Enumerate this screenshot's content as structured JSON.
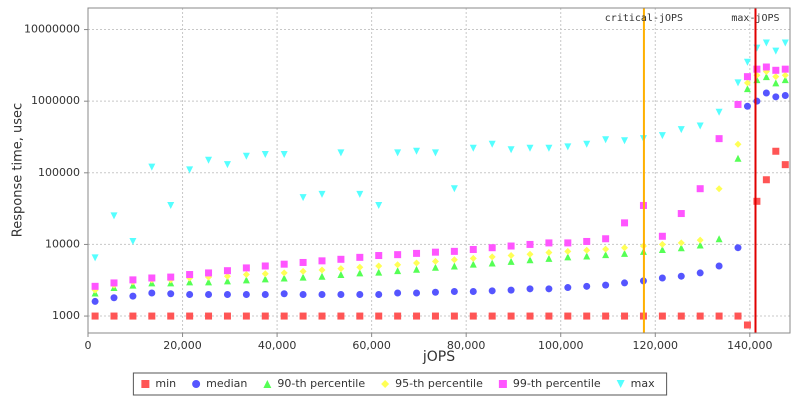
{
  "chart_data": {
    "type": "scatter",
    "x_label": "jOPS",
    "y_label": "Response time, usec",
    "log_y": true,
    "grid": true,
    "xlim": [
      0,
      148500
    ],
    "ylim": [
      580,
      20000000
    ],
    "xticks": [
      0,
      {
        "value": 20000,
        "label": "20,000"
      },
      {
        "value": 40000,
        "label": "40,000"
      },
      {
        "value": 60000,
        "label": "60,000"
      },
      {
        "value": 80000,
        "label": "80,000"
      },
      {
        "value": 100000,
        "label": "100,000"
      },
      {
        "value": 120000,
        "label": "120,000"
      },
      {
        "value": 140000,
        "label": "140,000"
      }
    ],
    "yticks": [
      1000,
      10000,
      100000,
      1000000,
      10000000
    ],
    "vlines": [
      {
        "label": "critical-jOPS",
        "x": 117600,
        "color": "#ffb000"
      },
      {
        "label": "max-jOPS",
        "x": 141200,
        "color": "#e00000"
      }
    ],
    "x": [
      1500,
      5500,
      9500,
      13500,
      17500,
      21500,
      25500,
      29500,
      33500,
      37500,
      41500,
      45500,
      49500,
      53500,
      57500,
      61500,
      65500,
      69500,
      73500,
      77500,
      81500,
      85500,
      89500,
      93500,
      97500,
      101500,
      105500,
      109500,
      113500,
      117500,
      121500,
      125500,
      129500,
      133500,
      137500,
      139500,
      141500,
      143500,
      145500,
      147500
    ],
    "series": [
      {
        "name": "min",
        "color": "#ff5555",
        "marker": "square",
        "values": [
          1000,
          1000,
          1000,
          1000,
          1000,
          1000,
          1000,
          1000,
          1000,
          1000,
          1000,
          1000,
          1000,
          1000,
          1000,
          1000,
          1000,
          1000,
          1000,
          1000,
          1000,
          1000,
          1000,
          1000,
          1000,
          1000,
          1000,
          1000,
          1000,
          1000,
          1000,
          1000,
          1000,
          1000,
          1000,
          750,
          40000,
          80000,
          200000,
          130000
        ]
      },
      {
        "name": "median",
        "color": "#5555ff",
        "marker": "circle",
        "values": [
          1600,
          1800,
          1900,
          2100,
          2050,
          2000,
          2000,
          2000,
          2000,
          2000,
          2050,
          2000,
          2000,
          2000,
          2000,
          2000,
          2100,
          2100,
          2150,
          2200,
          2200,
          2250,
          2300,
          2400,
          2400,
          2500,
          2600,
          2700,
          2900,
          3100,
          3400,
          3600,
          4000,
          5000,
          9000,
          850000,
          1000000,
          1300000,
          1150000,
          1200000
        ]
      },
      {
        "name": "90-th percentile",
        "color": "#55ff55",
        "marker": "triangle",
        "values": [
          2100,
          2500,
          2700,
          2900,
          2900,
          3000,
          3000,
          3100,
          3200,
          3300,
          3400,
          3500,
          3600,
          3800,
          4000,
          4100,
          4300,
          4500,
          4800,
          5000,
          5300,
          5500,
          5800,
          6100,
          6400,
          6700,
          6900,
          7200,
          7500,
          8000,
          8500,
          9000,
          9800,
          12000,
          160000,
          1500000,
          2000000,
          2200000,
          1800000,
          2000000
        ]
      },
      {
        "name": "95-th percentile",
        "color": "#ffff55",
        "marker": "diamond",
        "values": [
          2300,
          2700,
          3000,
          3200,
          3200,
          3400,
          3500,
          3600,
          3800,
          3900,
          4000,
          4200,
          4400,
          4600,
          4800,
          5000,
          5200,
          5500,
          5800,
          6100,
          6400,
          6700,
          7000,
          7300,
          7700,
          8000,
          8300,
          8600,
          9000,
          9500,
          10000,
          10500,
          11500,
          60000,
          250000,
          1800000,
          2300000,
          2600000,
          2200000,
          2300000
        ]
      },
      {
        "name": "99-th percentile",
        "color": "#ff55ff",
        "marker": "square",
        "values": [
          2600,
          2900,
          3200,
          3400,
          3500,
          3800,
          4000,
          4300,
          4700,
          5000,
          5300,
          5600,
          5900,
          6200,
          6600,
          7000,
          7200,
          7500,
          7800,
          8000,
          8500,
          9000,
          9500,
          10000,
          10500,
          10500,
          11000,
          12000,
          20000,
          35000,
          13000,
          27000,
          60000,
          300000,
          900000,
          2200000,
          2800000,
          3000000,
          2700000,
          2800000
        ]
      },
      {
        "name": "max",
        "color": "#55ffff",
        "marker": "itriangle",
        "values": [
          6500,
          25000,
          11000,
          120000,
          35000,
          110000,
          150000,
          130000,
          170000,
          180000,
          180000,
          45000,
          50000,
          190000,
          50000,
          35000,
          190000,
          200000,
          190000,
          60000,
          220000,
          250000,
          210000,
          220000,
          220000,
          230000,
          250000,
          290000,
          280000,
          300000,
          330000,
          400000,
          450000,
          700000,
          1800000,
          3500000,
          5500000,
          6500000,
          5000000,
          6500000
        ]
      }
    ]
  }
}
